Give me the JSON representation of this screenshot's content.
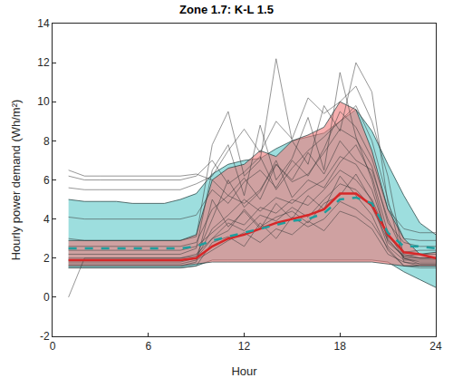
{
  "chart_data": {
    "type": "line",
    "title": "Zone 1.7: K-L 1.5",
    "x_label": "Hour",
    "y_label": "Hourly power demand (Wh/m²)",
    "x": [
      1,
      2,
      3,
      4,
      5,
      6,
      7,
      8,
      9,
      10,
      11,
      12,
      13,
      14,
      15,
      16,
      17,
      18,
      19,
      20,
      21,
      22,
      23,
      24
    ],
    "xlim": [
      0,
      24
    ],
    "xticks": [
      0,
      6,
      12,
      18,
      24
    ],
    "ylim": [
      -2,
      14
    ],
    "yticks": [
      -2,
      0,
      2,
      4,
      6,
      8,
      10,
      12,
      14
    ],
    "grid": false,
    "series": [
      {
        "type": "band",
        "color": "#5cc8c8",
        "lower": [
          1.5,
          1.5,
          1.5,
          1.5,
          1.5,
          1.5,
          1.5,
          1.5,
          1.6,
          1.9,
          1.9,
          1.9,
          1.9,
          1.9,
          1.9,
          1.9,
          1.9,
          1.9,
          1.9,
          1.9,
          1.8,
          1.3,
          0.9,
          0.5
        ],
        "upper": [
          5.0,
          4.9,
          4.9,
          4.9,
          4.8,
          4.8,
          4.8,
          5.0,
          5.3,
          6.3,
          6.8,
          7.0,
          7.1,
          7.6,
          8.0,
          8.2,
          8.4,
          9.0,
          9.6,
          8.5,
          6.8,
          5.2,
          3.8,
          3.2
        ]
      },
      {
        "type": "band",
        "color": "#f07878",
        "lower": [
          1.6,
          1.6,
          1.6,
          1.6,
          1.6,
          1.6,
          1.6,
          1.6,
          1.7,
          1.8,
          1.8,
          1.8,
          1.8,
          1.8,
          1.8,
          1.8,
          1.8,
          1.8,
          1.8,
          1.8,
          1.7,
          1.6,
          1.6,
          1.6
        ],
        "upper": [
          2.9,
          2.9,
          2.9,
          2.9,
          2.9,
          2.9,
          2.9,
          2.9,
          3.2,
          6.0,
          6.6,
          6.8,
          7.5,
          7.2,
          8.0,
          8.3,
          8.7,
          10.0,
          9.6,
          7.5,
          4.5,
          3.0,
          2.2,
          2.3
        ]
      },
      {
        "type": "line",
        "color": "#3a3a3a",
        "line_style": "solid",
        "values": [
          1.8,
          1.8,
          1.8,
          1.8,
          1.8,
          1.8,
          1.8,
          1.8,
          2.0,
          3.5,
          4.2,
          5.0,
          4.4,
          5.1,
          4.8,
          5.5,
          6.0,
          7.2,
          6.8,
          5.5,
          3.0,
          2.0,
          1.8,
          1.8
        ]
      },
      {
        "type": "line",
        "color": "#3a3a3a",
        "line_style": "solid",
        "values": [
          2.2,
          2.2,
          2.2,
          2.2,
          2.2,
          2.2,
          2.2,
          2.2,
          2.5,
          6.5,
          7.8,
          5.2,
          8.8,
          6.0,
          7.1,
          9.2,
          6.5,
          11.5,
          8.2,
          6.0,
          2.8,
          2.1,
          2.2,
          2.2
        ]
      },
      {
        "type": "line",
        "color": "#3a3a3a",
        "line_style": "solid",
        "values": [
          6.2,
          6.0,
          6.0,
          6.0,
          6.0,
          6.0,
          6.0,
          6.0,
          6.2,
          7.0,
          5.8,
          6.4,
          7.2,
          5.5,
          6.6,
          7.5,
          8.2,
          9.0,
          9.8,
          8.0,
          5.0,
          1.8,
          1.6,
          1.6
        ]
      },
      {
        "type": "line",
        "color": "#3a3a3a",
        "line_style": "solid",
        "values": [
          5.6,
          5.5,
          5.5,
          5.5,
          5.5,
          5.5,
          5.5,
          5.5,
          5.8,
          6.2,
          7.5,
          8.6,
          7.4,
          9.0,
          8.1,
          10.2,
          9.4,
          10.0,
          10.8,
          9.0,
          6.2,
          2.0,
          1.7,
          1.7
        ]
      },
      {
        "type": "line",
        "color": "#3a3a3a",
        "line_style": "solid",
        "values": [
          1.5,
          1.5,
          1.5,
          1.5,
          1.5,
          1.5,
          1.5,
          1.5,
          1.6,
          2.8,
          3.1,
          2.6,
          3.8,
          3.0,
          4.1,
          3.6,
          4.0,
          4.9,
          4.5,
          3.8,
          2.5,
          1.6,
          1.5,
          1.5
        ]
      },
      {
        "type": "line",
        "color": "#3a3a3a",
        "line_style": "solid",
        "values": [
          2.6,
          2.6,
          2.6,
          2.6,
          2.6,
          2.6,
          2.6,
          2.6,
          2.8,
          4.5,
          5.2,
          6.1,
          5.0,
          6.8,
          5.9,
          6.3,
          7.4,
          8.6,
          8.1,
          6.7,
          3.8,
          2.8,
          2.6,
          2.6
        ]
      },
      {
        "type": "line",
        "color": "#3a3a3a",
        "line_style": "solid",
        "values": [
          0.0,
          2.0,
          2.0,
          2.0,
          2.0,
          2.0,
          2.0,
          2.0,
          2.2,
          3.0,
          3.8,
          3.4,
          4.2,
          3.9,
          4.6,
          4.1,
          5.0,
          5.8,
          5.5,
          4.6,
          2.9,
          2.1,
          2.0,
          2.0
        ]
      },
      {
        "type": "line",
        "color": "#3a3a3a",
        "line_style": "solid",
        "values": [
          3.0,
          2.9,
          2.9,
          2.9,
          2.9,
          2.9,
          2.9,
          2.9,
          3.1,
          7.8,
          9.5,
          6.2,
          7.0,
          12.2,
          8.0,
          6.8,
          9.8,
          8.5,
          12.0,
          10.5,
          4.8,
          3.0,
          2.9,
          2.9
        ]
      },
      {
        "type": "line",
        "color": "#3a3a3a",
        "line_style": "solid",
        "values": [
          1.7,
          1.7,
          1.7,
          1.7,
          1.7,
          1.7,
          1.7,
          1.7,
          1.9,
          2.4,
          2.9,
          3.3,
          2.8,
          3.5,
          3.2,
          3.9,
          3.4,
          4.4,
          4.1,
          3.5,
          2.2,
          1.8,
          1.7,
          1.7
        ]
      },
      {
        "type": "line",
        "color": "#3a3a3a",
        "line_style": "solid",
        "values": [
          4.1,
          4.0,
          4.0,
          4.0,
          4.0,
          4.0,
          4.0,
          4.0,
          4.2,
          5.5,
          4.8,
          5.9,
          6.5,
          5.6,
          7.0,
          6.2,
          7.6,
          9.5,
          8.7,
          7.1,
          4.5,
          3.5,
          3.3,
          3.3
        ]
      },
      {
        "type": "line",
        "color": "#3a3a3a",
        "line_style": "solid",
        "values": [
          2.0,
          2.0,
          2.0,
          2.0,
          2.0,
          2.0,
          2.0,
          2.0,
          2.1,
          4.0,
          6.0,
          4.6,
          5.4,
          7.0,
          5.1,
          6.0,
          5.6,
          6.9,
          7.8,
          6.2,
          3.3,
          2.0,
          2.0,
          2.0
        ]
      },
      {
        "type": "line",
        "color": "#3a3a3a",
        "line_style": "solid",
        "values": [
          6.5,
          6.2,
          6.2,
          6.2,
          6.2,
          6.2,
          6.2,
          6.2,
          6.3,
          6.0,
          5.2,
          4.8,
          5.5,
          6.8,
          6.0,
          7.4,
          6.3,
          8.0,
          7.0,
          6.5,
          4.0,
          2.2,
          2.0,
          2.0
        ]
      },
      {
        "type": "line",
        "color": "#3a3a3a",
        "line_style": "solid",
        "values": [
          1.6,
          1.6,
          1.6,
          1.6,
          1.6,
          1.6,
          1.6,
          1.6,
          1.8,
          5.0,
          3.6,
          4.4,
          3.5,
          4.8,
          4.0,
          5.2,
          4.5,
          6.2,
          5.2,
          4.2,
          2.4,
          1.6,
          1.6,
          1.6
        ]
      },
      {
        "type": "line",
        "color": "#3a3a3a",
        "line_style": "solid",
        "values": [
          2.4,
          2.4,
          2.4,
          2.4,
          2.4,
          2.4,
          2.4,
          2.4,
          2.6,
          3.3,
          4.0,
          3.7,
          4.6,
          4.3,
          5.0,
          4.7,
          5.5,
          6.5,
          6.0,
          5.0,
          3.1,
          2.3,
          2.4,
          2.4
        ]
      },
      {
        "type": "line",
        "color": "#3a3a3a",
        "line_style": "solid",
        "values": [
          1.9,
          1.9,
          1.9,
          1.9,
          1.9,
          1.9,
          1.9,
          1.9,
          2.0,
          3.0,
          3.4,
          4.5,
          3.6,
          4.1,
          4.4,
          3.8,
          4.8,
          5.2,
          6.3,
          4.9,
          2.6,
          1.9,
          1.9,
          1.9
        ]
      },
      {
        "type": "line",
        "color": "#d62728",
        "line_style": "solid",
        "values": [
          1.9,
          1.9,
          1.9,
          1.9,
          1.9,
          1.9,
          1.9,
          1.9,
          2.0,
          2.6,
          3.0,
          3.2,
          3.5,
          3.8,
          4.0,
          4.2,
          4.5,
          5.3,
          5.3,
          4.7,
          3.2,
          2.3,
          2.2,
          2.0
        ]
      },
      {
        "type": "line",
        "color": "#1f9e9e",
        "line_style": "dash",
        "values": [
          2.5,
          2.5,
          2.5,
          2.5,
          2.5,
          2.5,
          2.5,
          2.5,
          2.6,
          2.9,
          3.1,
          3.3,
          3.5,
          3.7,
          3.9,
          4.0,
          4.3,
          5.0,
          5.1,
          4.8,
          3.3,
          2.6,
          2.6,
          2.5
        ]
      }
    ]
  }
}
